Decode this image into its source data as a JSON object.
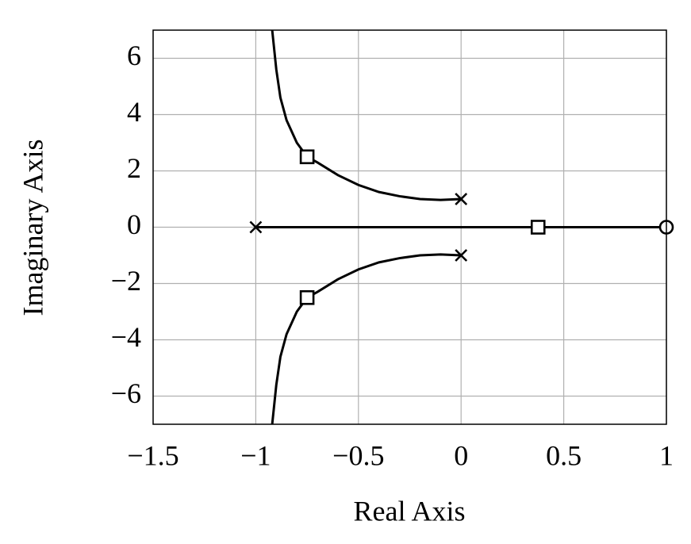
{
  "chart_data": {
    "type": "line",
    "x_label": "Real Axis",
    "y_label": "Imaginary Axis",
    "xlim": [
      -1.5,
      1
    ],
    "ylim": [
      -7,
      7
    ],
    "xticks": [
      {
        "value": -1.5,
        "label": "−1.5"
      },
      {
        "value": -1,
        "label": "−1"
      },
      {
        "value": -0.5,
        "label": "−0.5"
      },
      0,
      0.5,
      1
    ],
    "yticks": [
      {
        "value": -6,
        "label": "−6"
      },
      {
        "value": -4,
        "label": "−4"
      },
      {
        "value": -2,
        "label": "−2"
      },
      0,
      2,
      4,
      6
    ],
    "grid": true,
    "series": [
      {
        "color": "#000000",
        "x": [
          0,
          -0.1,
          -0.2,
          -0.3,
          -0.4,
          -0.5,
          -0.6,
          -0.7,
          -0.75,
          -0.8,
          -0.85,
          -0.88,
          -0.9,
          -0.92
        ],
        "y": [
          1,
          0.97,
          1.0,
          1.1,
          1.25,
          1.5,
          1.85,
          2.3,
          2.5,
          3.0,
          3.8,
          4.6,
          5.6,
          7
        ]
      },
      {
        "color": "#000000",
        "x": [
          0,
          -0.1,
          -0.2,
          -0.3,
          -0.4,
          -0.5,
          -0.6,
          -0.7,
          -0.75,
          -0.8,
          -0.85,
          -0.88,
          -0.9,
          -0.92
        ],
        "y": [
          -1,
          -0.97,
          -1.0,
          -1.1,
          -1.25,
          -1.5,
          -1.85,
          -2.3,
          -2.5,
          -3.0,
          -3.8,
          -4.6,
          -5.6,
          -7
        ]
      },
      {
        "color": "#000000",
        "x": [
          -1,
          1
        ],
        "y": [
          0,
          0
        ]
      }
    ],
    "markers": [
      {
        "shape": "x",
        "x": [
          -1,
          0,
          0
        ],
        "y": [
          0,
          1,
          -1
        ]
      },
      {
        "shape": "circle",
        "x": [
          1
        ],
        "y": [
          0
        ]
      },
      {
        "shape": "square",
        "x": [
          -0.75,
          -0.75,
          0.375
        ],
        "y": [
          2.5,
          -2.5,
          0
        ]
      }
    ]
  }
}
